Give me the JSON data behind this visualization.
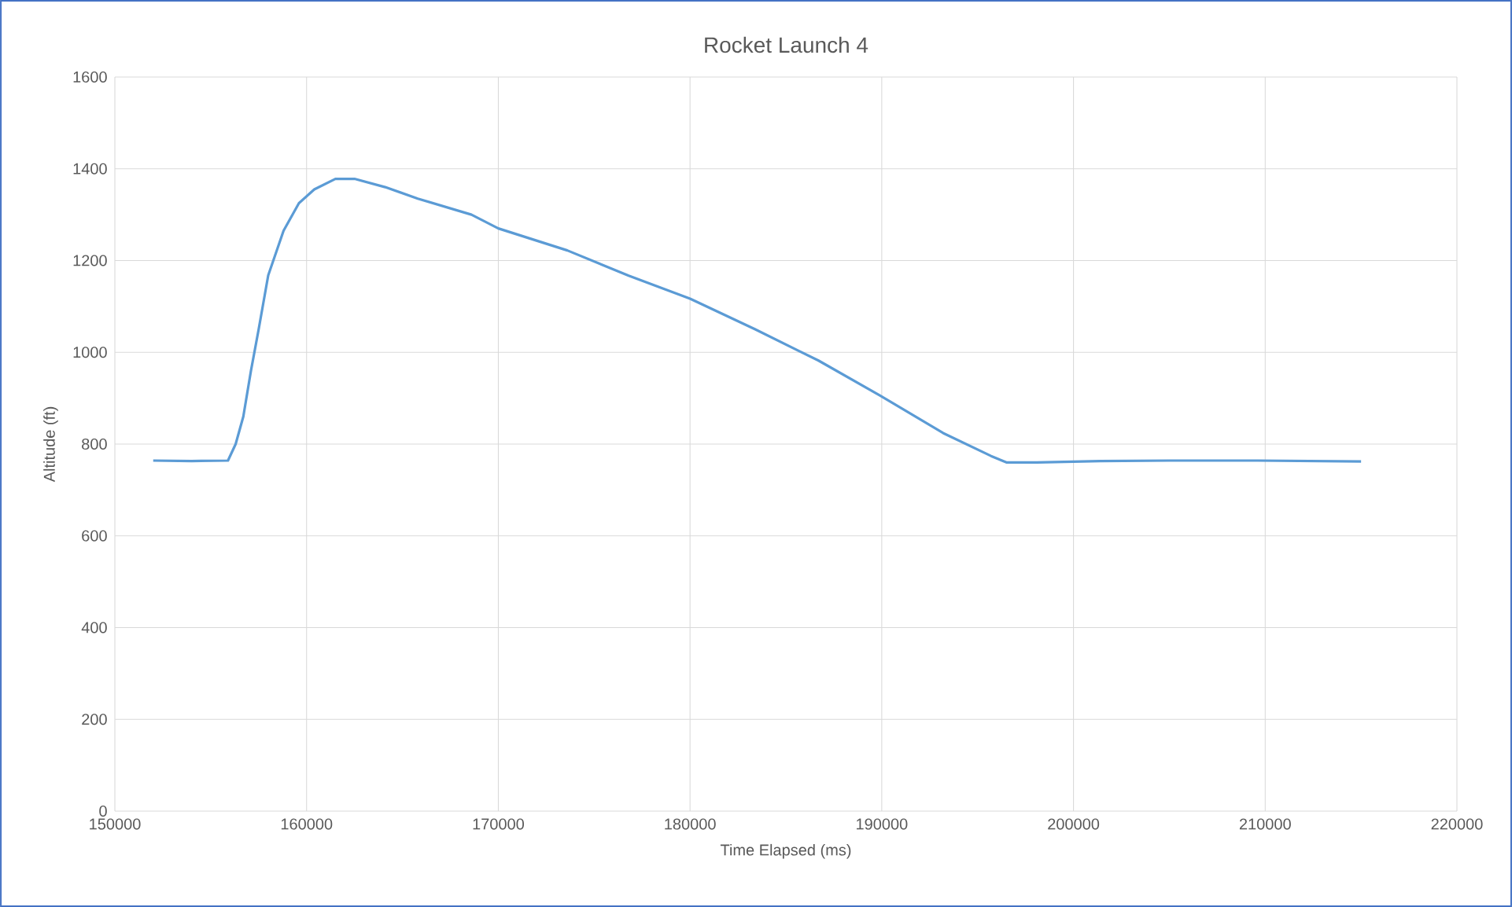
{
  "chart_data": {
    "type": "line",
    "title": "Rocket Launch 4",
    "xlabel": "Time Elapsed (ms)",
    "ylabel": "Altitude (ft)",
    "x": [
      152000,
      154000,
      155900,
      156300,
      156700,
      157100,
      157500,
      158000,
      158800,
      159600,
      160400,
      161500,
      162500,
      164100,
      165800,
      168600,
      170000,
      173600,
      176800,
      180000,
      183400,
      186700,
      189900,
      193200,
      195700,
      196500,
      198100,
      201400,
      205000,
      209600,
      215000
    ],
    "series": [
      {
        "color": "#5b9bd5",
        "values": [
          764,
          763,
          764,
          800,
          860,
          960,
          1050,
          1168,
          1265,
          1325,
          1355,
          1378,
          1378,
          1360,
          1335,
          1300,
          1270,
          1222,
          1167,
          1117,
          1050,
          982,
          906,
          824,
          774,
          760,
          760,
          763,
          764,
          764,
          762
        ]
      }
    ],
    "xlim": [
      150000,
      220000
    ],
    "xticks": [
      150000,
      160000,
      170000,
      180000,
      190000,
      200000,
      210000,
      220000
    ],
    "ylim": [
      0,
      1600
    ],
    "yticks": [
      0,
      200,
      400,
      600,
      800,
      1000,
      1200,
      1400,
      1600
    ],
    "grid": true,
    "marker": "none",
    "line_style": "solid"
  }
}
